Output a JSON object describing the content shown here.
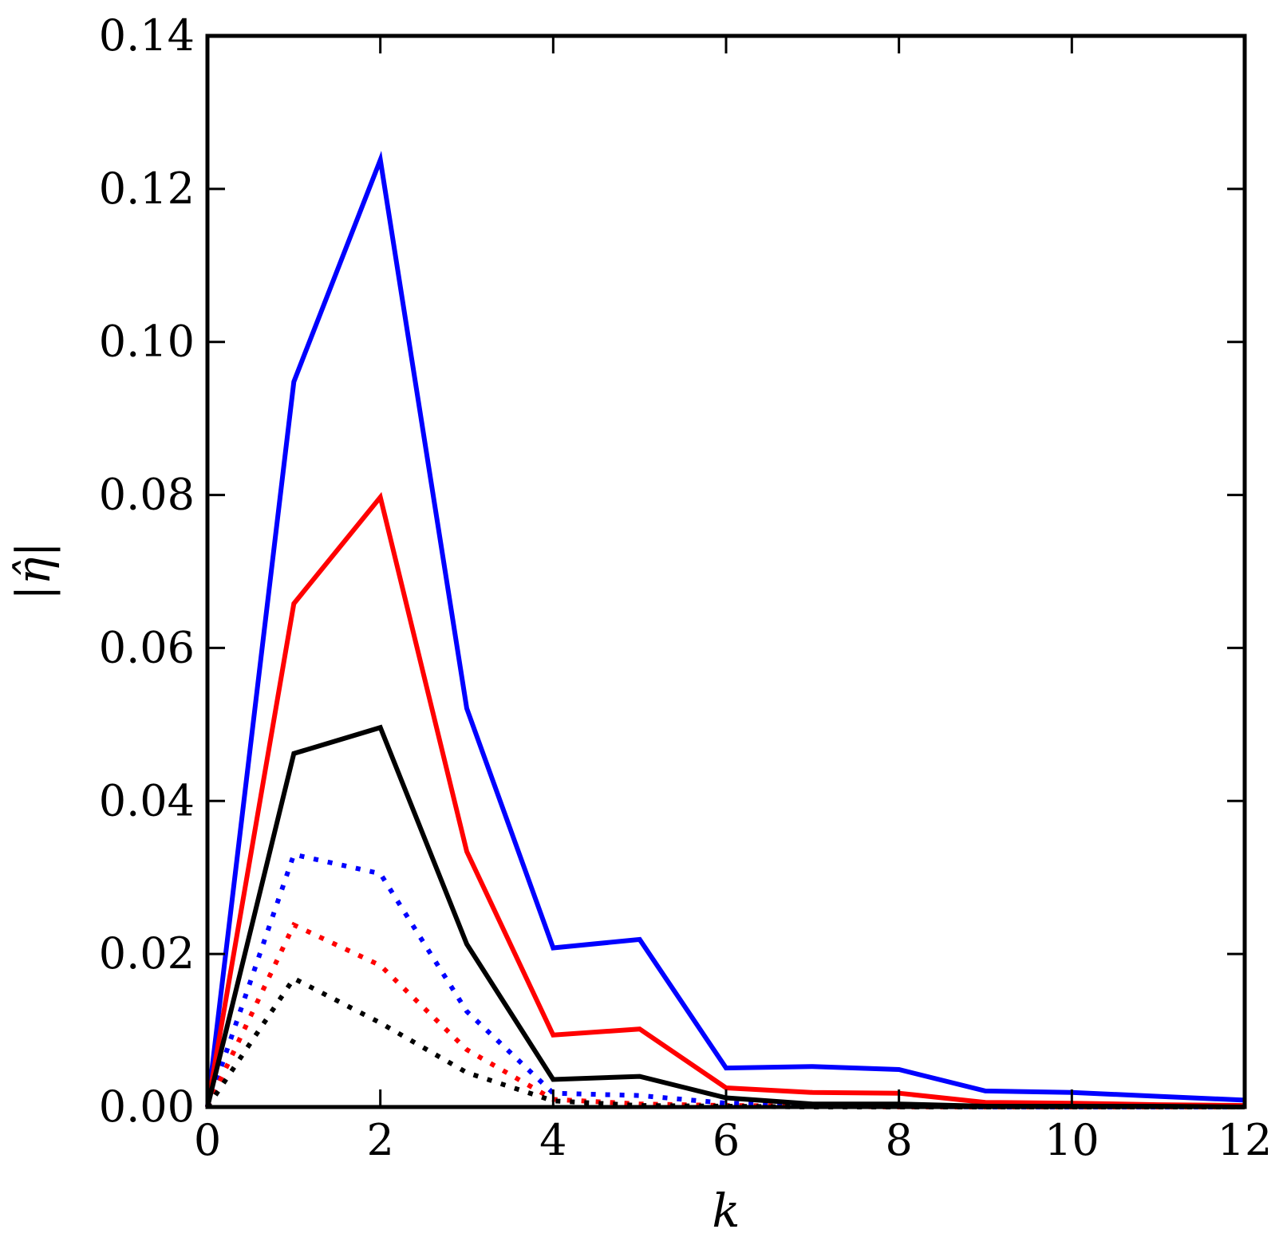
{
  "chart_data": {
    "type": "line",
    "xlabel": "k",
    "ylabel": "|η̂|",
    "xlim": [
      0,
      12
    ],
    "ylim": [
      0,
      0.14
    ],
    "x_ticks": [
      0,
      2,
      4,
      6,
      8,
      10,
      12
    ],
    "x_tick_labels": [
      "0",
      "2",
      "4",
      "6",
      "8",
      "10",
      "12"
    ],
    "y_ticks": [
      0,
      0.02,
      0.04,
      0.06,
      0.08,
      0.1,
      0.12,
      0.14
    ],
    "y_tick_labels": [
      "0.00",
      "0.02",
      "0.04",
      "0.06",
      "0.08",
      "0.10",
      "0.12",
      "0.14"
    ],
    "grid": false,
    "legend": "none",
    "x": [
      0,
      1,
      2,
      3,
      4,
      5,
      6,
      7,
      8,
      9,
      10,
      11,
      12
    ],
    "series": [
      {
        "color": "#0000ff",
        "style": "solid",
        "values": [
          0,
          0.0948,
          0.1238,
          0.0521,
          0.0208,
          0.0219,
          0.0051,
          0.0053,
          0.0049,
          0.0021,
          0.0019,
          0.0014,
          0.0009
        ]
      },
      {
        "color": "#ff0000",
        "style": "solid",
        "values": [
          0,
          0.0658,
          0.0797,
          0.0334,
          0.0094,
          0.0102,
          0.0025,
          0.0019,
          0.0018,
          0.0006,
          0.0005,
          0.0003,
          0.0002
        ]
      },
      {
        "color": "#000000",
        "style": "solid",
        "values": [
          0,
          0.0462,
          0.0496,
          0.0213,
          0.0036,
          0.004,
          0.0012,
          0.0004,
          0.0004,
          0.0001,
          0.0001,
          0.0001,
          0.0
        ]
      },
      {
        "color": "#0000ff",
        "style": "dotted",
        "values": [
          0,
          0.033,
          0.0305,
          0.0125,
          0.0018,
          0.0015,
          0.0005,
          0.0002,
          0.0001,
          0.0,
          0.0,
          0.0,
          0.0
        ]
      },
      {
        "color": "#ff0000",
        "style": "dotted",
        "values": [
          0,
          0.0238,
          0.0185,
          0.0075,
          0.001,
          0.0004,
          0.0002,
          0.0001,
          0.0,
          0.0,
          0.0,
          0.0,
          0.0
        ]
      },
      {
        "color": "#000000",
        "style": "dotted",
        "values": [
          0,
          0.0168,
          0.011,
          0.0045,
          0.0008,
          0.0002,
          0.0001,
          0.0,
          0.0,
          0.0,
          0.0,
          0.0,
          0.0
        ]
      }
    ]
  }
}
